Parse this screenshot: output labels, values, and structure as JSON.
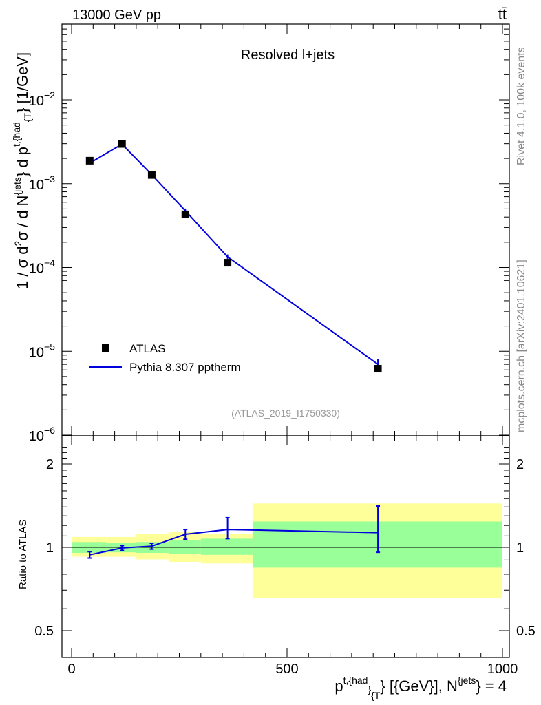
{
  "header": {
    "energy_label": "13000 GeV pp",
    "process_label": "tt̄"
  },
  "side_labels": {
    "rivet": "Rivet 4.1.0,  100k events",
    "mcplots": "mcplots.cern.ch [arXiv:2401.10621]"
  },
  "chart_data": [
    {
      "type": "scatter",
      "panel": "main",
      "title": "Resolved l+jets",
      "analysis_tag": "(ATLAS_2019_I1750330)",
      "yscale": "log",
      "ylabel": {
        "prefix": "1 / σ d",
        "sup1": "2",
        "mid1": "σ / d N",
        "sup2": "{jets",
        "mid2": "} d p",
        "sup3": "t,{had",
        "sub3": "{T",
        "suffix": "} [1/GeV]"
      },
      "xlim": [
        -25,
        1000
      ],
      "ylim": [
        1e-06,
        0.1
      ],
      "y_ticks": [
        {
          "value": 1e-06,
          "mant": "10",
          "exp": "−6"
        },
        {
          "value": 1e-05,
          "mant": "10",
          "exp": "−5"
        },
        {
          "value": 0.0001,
          "mant": "10",
          "exp": "−4"
        },
        {
          "value": 0.001,
          "mant": "10",
          "exp": "−3"
        },
        {
          "value": 0.01,
          "mant": "10",
          "exp": "−2"
        }
      ],
      "legend": {
        "position": "bottom-left",
        "entries": [
          "ATLAS",
          "Pythia 8.307 pptherm"
        ]
      },
      "series": [
        {
          "name": "ATLAS",
          "style": "black-square-markers",
          "x": [
            42,
            117,
            186,
            264,
            362,
            711
          ],
          "y": [
            0.00188,
            0.00298,
            0.00127,
            0.00043,
            0.000114,
            6.2e-06
          ],
          "bins": [
            [
              0,
              80
            ],
            [
              80,
              150
            ],
            [
              150,
              225
            ],
            [
              225,
              300
            ],
            [
              300,
              420
            ],
            [
              420,
              1000
            ]
          ]
        },
        {
          "name": "Pythia 8.307 pptherm",
          "style": "blue-line",
          "color": "#0000dd",
          "x": [
            42,
            117,
            186,
            264,
            362,
            711
          ],
          "y": [
            0.00176,
            0.00296,
            0.00128,
            0.000475,
            0.000134,
            7e-06
          ],
          "err_low": [
            0.00174,
            0.00291,
            0.00125,
            0.000455,
            0.000127,
            6.1e-06
          ],
          "err_high": [
            0.00178,
            0.00301,
            0.00131,
            0.000505,
            0.000143,
            8.1e-06
          ]
        }
      ]
    },
    {
      "type": "line",
      "panel": "ratio",
      "ylabel": "Ratio to ATLAS",
      "xlabel": {
        "prefix": "p",
        "sup1": "t,{had",
        "sub1": "}",
        "sub2": "{T",
        "mid": "} [{GeV}], N",
        "sup2": "{jets",
        "suffix": "} = 4"
      },
      "xlim": [
        -25,
        1000
      ],
      "ylim": [
        0.4,
        2.35
      ],
      "yscale": "log",
      "x_ticks": [
        "0",
        "500",
        "1000"
      ],
      "y_ticks": [
        "0.5",
        "1",
        "2"
      ],
      "uncertainty_bands": {
        "colors": {
          "inner": "#99ff99",
          "outer": "#ffff99"
        },
        "bins": [
          [
            0,
            80
          ],
          [
            80,
            150
          ],
          [
            150,
            225
          ],
          [
            225,
            300
          ],
          [
            300,
            420
          ],
          [
            420,
            1000
          ]
        ],
        "inner_low": [
          0.955,
          0.96,
          0.955,
          0.945,
          0.94,
          0.845
        ],
        "inner_high": [
          1.045,
          1.04,
          1.045,
          1.06,
          1.075,
          1.24
        ],
        "outer_low": [
          0.925,
          0.925,
          0.905,
          0.885,
          0.875,
          0.655
        ],
        "outer_high": [
          1.09,
          1.09,
          1.115,
          1.135,
          1.12,
          1.44
        ]
      },
      "series": [
        {
          "name": "Pythia 8.307 pptherm / ATLAS",
          "color": "#0000dd",
          "x": [
            42,
            117,
            186,
            264,
            362,
            711
          ],
          "y": [
            0.94,
            0.995,
            1.01,
            1.115,
            1.16,
            1.13
          ],
          "err_low": [
            0.915,
            0.975,
            0.985,
            1.07,
            1.075,
            0.96
          ],
          "err_high": [
            0.965,
            1.015,
            1.035,
            1.16,
            1.28,
            1.41
          ]
        }
      ]
    }
  ]
}
